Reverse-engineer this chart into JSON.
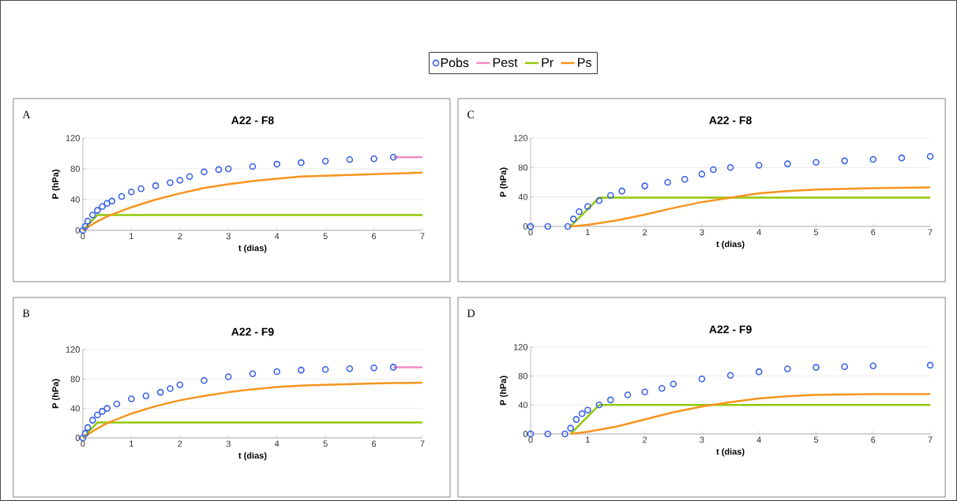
{
  "chart_data": [
    {
      "type": "line",
      "title": "A22 - F8",
      "xlabel": "t (dias)",
      "ylabel": "P (hPa)",
      "annotations": [
        "A"
      ],
      "xlim": [
        0,
        7
      ],
      "xticks": [
        0,
        1,
        2,
        3,
        4,
        5,
        6,
        7
      ],
      "ylim": [
        0,
        120
      ],
      "yticks": [
        0,
        40,
        80,
        120
      ],
      "grid": "y",
      "legend": "top",
      "series": [
        {
          "name": "Pobs",
          "type": "scatter",
          "marker": "circle",
          "color": "#3a62e8",
          "x": [
            0,
            0.05,
            0.1,
            0.2,
            0.3,
            0.4,
            0.5,
            0.6,
            0.8,
            1,
            1.2,
            1.5,
            1.8,
            2,
            2.2,
            2.5,
            2.8,
            3,
            3.5,
            4,
            4.5,
            5,
            5.5,
            6,
            6.4
          ],
          "values": [
            0,
            5,
            12,
            20,
            26,
            31,
            35,
            38,
            44,
            50,
            54,
            58,
            62,
            65,
            70,
            76,
            79,
            80,
            83,
            86,
            88,
            90,
            92,
            93,
            95
          ]
        },
        {
          "name": "Pest",
          "color": "#f08cc0",
          "x": [
            6.4,
            7
          ],
          "values": [
            95,
            95
          ]
        },
        {
          "name": "Pr",
          "color": "#92c80a",
          "x": [
            0,
            0.3,
            7
          ],
          "values": [
            0,
            20,
            20
          ]
        },
        {
          "name": "Ps",
          "color": "#f7941d",
          "x": [
            0,
            0.25,
            0.5,
            1,
            1.5,
            2,
            2.5,
            3,
            3.5,
            4,
            4.5,
            5,
            5.5,
            6,
            6.5,
            7
          ],
          "values": [
            0,
            10,
            18,
            30,
            40,
            48,
            55,
            60,
            64,
            67,
            70,
            71,
            72,
            73,
            74,
            75
          ]
        }
      ]
    },
    {
      "type": "line",
      "title": "A22 - F9",
      "xlabel": "t (dias)",
      "ylabel": "P (hPa)",
      "annotations": [
        "B"
      ],
      "xlim": [
        0,
        7
      ],
      "xticks": [
        0,
        1,
        2,
        3,
        4,
        5,
        6,
        7
      ],
      "ylim": [
        0,
        120
      ],
      "yticks": [
        0,
        40,
        80,
        120
      ],
      "grid": "y",
      "series": [
        {
          "type": "scatter",
          "marker": "circle",
          "color": "#3a62e8",
          "x": [
            0,
            0.05,
            0.1,
            0.2,
            0.3,
            0.4,
            0.5,
            0.7,
            1,
            1.3,
            1.6,
            1.8,
            2,
            2.5,
            3,
            3.5,
            4,
            4.5,
            5,
            5.5,
            6,
            6.4
          ],
          "values": [
            0,
            6,
            14,
            24,
            31,
            36,
            40,
            46,
            53,
            57,
            62,
            67,
            72,
            78,
            83,
            87,
            90,
            92,
            93,
            94,
            95,
            96
          ]
        },
        {
          "color": "#f08cc0",
          "x": [
            6.4,
            7
          ],
          "values": [
            96,
            96
          ]
        },
        {
          "color": "#92c80a",
          "x": [
            0,
            0.3,
            7
          ],
          "values": [
            0,
            21,
            21
          ]
        },
        {
          "color": "#f7941d",
          "x": [
            0,
            0.25,
            0.5,
            1,
            1.5,
            2,
            2.5,
            3,
            3.5,
            4,
            4.5,
            5,
            5.5,
            6,
            7
          ],
          "values": [
            0,
            11,
            20,
            33,
            43,
            51,
            57,
            62,
            66,
            69,
            71,
            72,
            73,
            74,
            75
          ]
        }
      ]
    },
    {
      "type": "line",
      "title": "A22 - F8",
      "xlabel": "t (dias)",
      "ylabel": "P (hPa)",
      "annotations": [
        "C"
      ],
      "xlim": [
        0,
        7
      ],
      "xticks": [
        0,
        1,
        2,
        3,
        4,
        5,
        6,
        7
      ],
      "ylim": [
        0,
        120
      ],
      "yticks": [
        0,
        40,
        80,
        120
      ],
      "grid": "y",
      "series": [
        {
          "type": "scatter",
          "marker": "circle",
          "color": "#3a62e8",
          "x": [
            0,
            0.3,
            0.65,
            0.75,
            0.85,
            1,
            1.2,
            1.4,
            1.6,
            2,
            2.4,
            2.7,
            3,
            3.2,
            3.5,
            4,
            4.5,
            5,
            5.5,
            6,
            6.5,
            7
          ],
          "values": [
            0,
            0,
            0,
            10,
            20,
            27,
            35,
            42,
            48,
            55,
            60,
            64,
            71,
            77,
            80,
            83,
            85,
            87,
            89,
            91,
            93,
            95
          ]
        },
        {
          "color": "#92c80a",
          "x": [
            0.7,
            1.2,
            7
          ],
          "values": [
            0,
            39,
            39
          ]
        },
        {
          "color": "#f7941d",
          "x": [
            0.7,
            1,
            1.5,
            2,
            2.5,
            3,
            3.5,
            4,
            4.5,
            5,
            5.5,
            6,
            7
          ],
          "values": [
            0,
            2,
            8,
            16,
            25,
            33,
            39,
            45,
            48,
            50,
            51,
            52,
            53
          ]
        }
      ]
    },
    {
      "type": "line",
      "title": "A22 - F9",
      "xlabel": "t (dias)",
      "ylabel": "P (hPa)",
      "annotations": [
        "D"
      ],
      "xlim": [
        0,
        7
      ],
      "xticks": [
        0,
        1,
        2,
        3,
        4,
        5,
        6,
        7
      ],
      "ylim": [
        0,
        120
      ],
      "yticks": [
        0,
        40,
        80,
        120
      ],
      "grid": "y",
      "series": [
        {
          "type": "scatter",
          "marker": "circle",
          "color": "#3a62e8",
          "x": [
            0,
            0.3,
            0.6,
            0.7,
            0.8,
            0.9,
            1,
            1.2,
            1.4,
            1.7,
            2,
            2.3,
            2.5,
            3,
            3.5,
            4,
            4.5,
            5,
            5.5,
            6,
            7
          ],
          "values": [
            0,
            0,
            0,
            8,
            20,
            28,
            33,
            40,
            47,
            54,
            58,
            63,
            69,
            76,
            81,
            86,
            90,
            92,
            93,
            94,
            95
          ]
        },
        {
          "color": "#92c80a",
          "x": [
            0.7,
            1.2,
            7
          ],
          "values": [
            0,
            40,
            40
          ]
        },
        {
          "color": "#f7941d",
          "x": [
            0.7,
            1,
            1.5,
            2,
            2.5,
            3,
            3.5,
            4,
            4.5,
            5,
            6,
            7
          ],
          "values": [
            0,
            3,
            10,
            20,
            30,
            38,
            44,
            49,
            52,
            54,
            55,
            55
          ]
        }
      ]
    }
  ]
}
